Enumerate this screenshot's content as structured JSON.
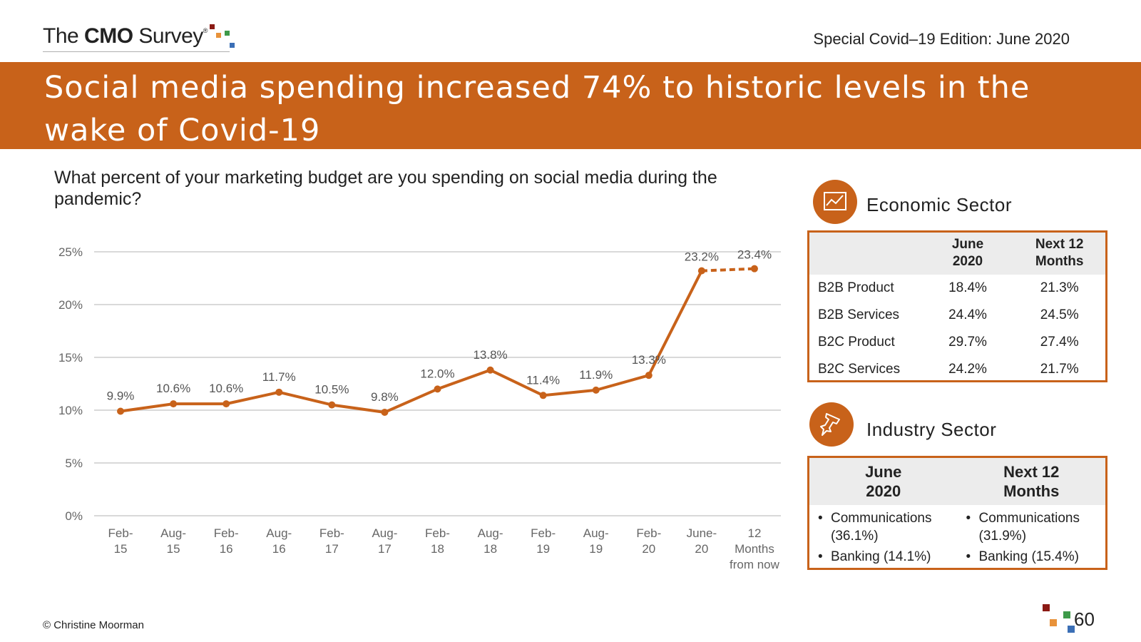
{
  "header": {
    "logo": {
      "the": "The",
      "cmo": "CMO",
      "survey": "Survey",
      "reg": "®"
    },
    "edition": "Special Covid–19 Edition: June 2020",
    "title": "Social media spending increased 74% to historic levels in the wake of Covid-19"
  },
  "question": "What percent of your marketing budget are you spending on social media during the pandemic?",
  "colors": {
    "accent": "#c8621a",
    "line": "#c8621a",
    "grid": "#d9d9d9",
    "panel_header_bg": "#ececec"
  },
  "chart_data": {
    "type": "line",
    "categories": [
      "Feb-15",
      "Aug-15",
      "Feb-16",
      "Aug-16",
      "Feb-17",
      "Aug-17",
      "Feb-18",
      "Aug-18",
      "Feb-19",
      "Aug-19",
      "Feb-20",
      "June-20",
      "12 Months from now"
    ],
    "category_lines": [
      [
        "Feb-",
        "15"
      ],
      [
        "Aug-",
        "15"
      ],
      [
        "Feb-",
        "16"
      ],
      [
        "Aug-",
        "16"
      ],
      [
        "Feb-",
        "17"
      ],
      [
        "Aug-",
        "17"
      ],
      [
        "Feb-",
        "18"
      ],
      [
        "Aug-",
        "18"
      ],
      [
        "Feb-",
        "19"
      ],
      [
        "Aug-",
        "19"
      ],
      [
        "Feb-",
        "20"
      ],
      [
        "June-",
        "20"
      ],
      [
        "12",
        "Months",
        "from now"
      ]
    ],
    "values": [
      9.9,
      10.6,
      10.6,
      11.7,
      10.5,
      9.8,
      12.0,
      13.8,
      11.4,
      11.9,
      13.3,
      23.2,
      23.4
    ],
    "data_labels": [
      "9.9%",
      "10.6%",
      "10.6%",
      "11.7%",
      "10.5%",
      "9.8%",
      "12.0%",
      "13.8%",
      "11.4%",
      "11.9%",
      "13.3%",
      "23.2%",
      "23.4%"
    ],
    "projection_from_index": 11,
    "ylim": [
      0,
      25
    ],
    "yticks": [
      0,
      5,
      10,
      15,
      20,
      25
    ],
    "ytick_labels": [
      "0%",
      "5%",
      "10%",
      "15%",
      "20%",
      "25%"
    ],
    "grid": true,
    "legend": "none"
  },
  "economic": {
    "title": "Economic Sector",
    "icon": "line-chart-icon",
    "col1_header": [
      "June",
      "2020"
    ],
    "col2_header": [
      "Next 12",
      "Months"
    ],
    "rows": [
      {
        "label": "B2B Product",
        "v1": "18.4%",
        "v2": "21.3%"
      },
      {
        "label": "B2B Services",
        "v1": "24.4%",
        "v2": "24.5%"
      },
      {
        "label": "B2C Product",
        "v1": "29.7%",
        "v2": "27.4%"
      },
      {
        "label": "B2C Services",
        "v1": "24.2%",
        "v2": "21.7%"
      }
    ]
  },
  "industry": {
    "title": "Industry Sector",
    "icon": "pushpin-icon",
    "col1_header": [
      "June",
      "2020"
    ],
    "col2_header": [
      "Next 12",
      "Months"
    ],
    "col1_items": [
      "Communications (36.1%)",
      "Banking (14.1%)"
    ],
    "col2_items": [
      "Communications (31.9%)",
      "Banking (15.4%)"
    ]
  },
  "footer": {
    "copyright": "© Christine Moorman",
    "page": "60"
  }
}
